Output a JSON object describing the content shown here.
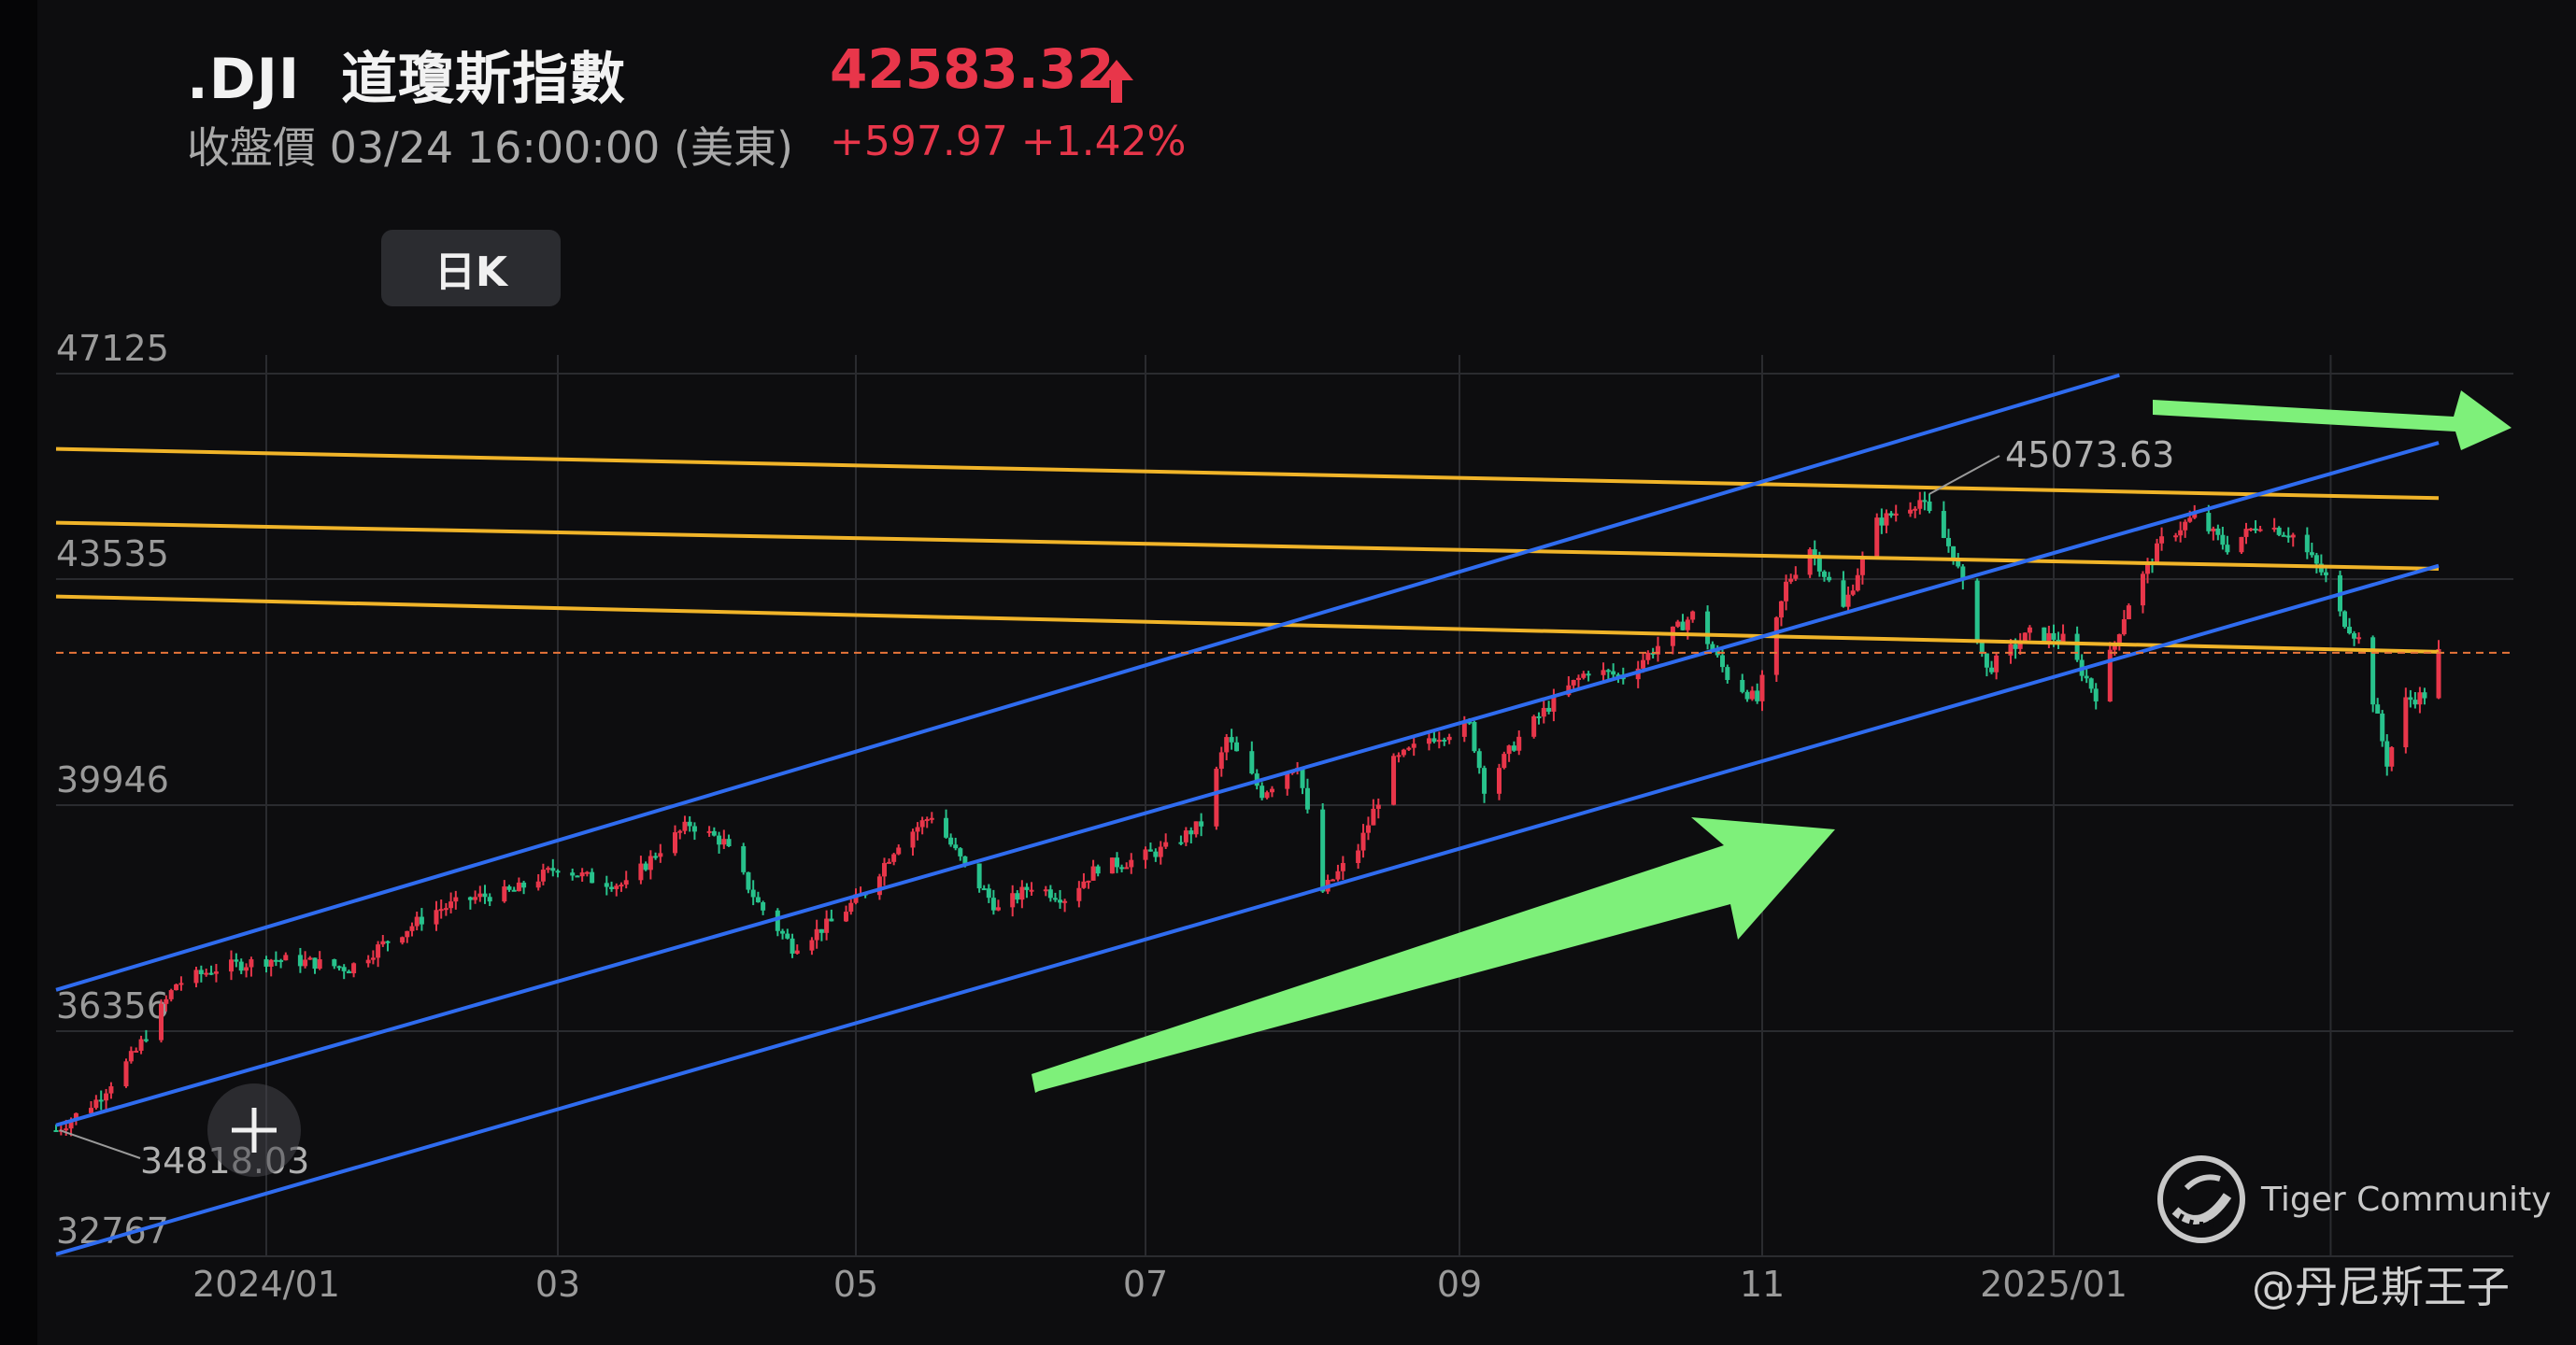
{
  "header": {
    "ticker": ".DJI",
    "name": "道瓊斯指數",
    "price": "42583.32",
    "status_line": "收盤價 03/24 16:00:00 (美東)",
    "change": "+597.97 +1.42%",
    "period_label": "日K"
  },
  "colors": {
    "up": "#e8364a",
    "down": "#28c28c",
    "channel": "#2f6cf0",
    "resistance": "#f0b429",
    "arrow": "#7ef07a",
    "close_line": "#e8743a"
  },
  "chart_data": {
    "type": "candlestick",
    "y_ticks": [
      47125,
      43535,
      39946,
      36356,
      32767
    ],
    "x_ticks": [
      "2024/01",
      "03",
      "05",
      "07",
      "09",
      "11",
      "2025/01"
    ],
    "current_close": 42583.32,
    "annotations": {
      "high_label": "45073.63",
      "high_value": 45073.63,
      "low_label": "34818.03",
      "low_value": 34818.03
    },
    "channel_lines": [
      {
        "start": [
          "2023/11/20",
          37100
        ],
        "end": [
          "2025/01/15",
          47100
        ]
      },
      {
        "start": [
          "2023/11/20",
          34900
        ],
        "end": [
          "2025/03/24",
          46000
        ]
      },
      {
        "start": [
          "2023/11/20",
          32800
        ],
        "end": [
          "2025/03/24",
          44000
        ]
      }
    ],
    "resistance_lines": [
      {
        "start": [
          "2023/11/20",
          45900
        ],
        "end": [
          "2025/03/24",
          45100
        ]
      },
      {
        "start": [
          "2023/11/20",
          44700
        ],
        "end": [
          "2025/03/24",
          43950
        ]
      },
      {
        "start": [
          "2023/11/20",
          43500
        ],
        "end": [
          "2025/03/24",
          42600
        ]
      }
    ],
    "close_path": [
      [
        "2023/11/20",
        34818
      ],
      [
        "2023/11/28",
        35300
      ],
      [
        "2023/12/06",
        36100
      ],
      [
        "2023/12/14",
        37200
      ],
      [
        "2023/12/22",
        37450
      ],
      [
        "2024/01/02",
        37600
      ],
      [
        "2024/01/10",
        37550
      ],
      [
        "2024/01/18",
        37450
      ],
      [
        "2024/01/26",
        37900
      ],
      [
        "2024/02/05",
        38400
      ],
      [
        "2024/02/13",
        38600
      ],
      [
        "2024/02/21",
        38700
      ],
      [
        "2024/03/01",
        39100
      ],
      [
        "2024/03/08",
        38900
      ],
      [
        "2024/03/15",
        38800
      ],
      [
        "2024/03/22",
        39400
      ],
      [
        "2024/03/28",
        39800
      ],
      [
        "2024/04/04",
        39500
      ],
      [
        "2024/04/11",
        38500
      ],
      [
        "2024/04/18",
        37800
      ],
      [
        "2024/04/26",
        38200
      ],
      [
        "2024/05/03",
        38700
      ],
      [
        "2024/05/10",
        39500
      ],
      [
        "2024/05/17",
        39950
      ],
      [
        "2024/05/24",
        39100
      ],
      [
        "2024/05/31",
        38400
      ],
      [
        "2024/06/07",
        38800
      ],
      [
        "2024/06/14",
        38600
      ],
      [
        "2024/06/21",
        39100
      ],
      [
        "2024/06/28",
        39200
      ],
      [
        "2024/07/05",
        39400
      ],
      [
        "2024/07/12",
        39800
      ],
      [
        "2024/07/17",
        41200
      ],
      [
        "2024/07/24",
        40300
      ],
      [
        "2024/07/31",
        40800
      ],
      [
        "2024/08/05",
        38700
      ],
      [
        "2024/08/12",
        39400
      ],
      [
        "2024/08/19",
        40800
      ],
      [
        "2024/08/26",
        41200
      ],
      [
        "2024/09/03",
        41400
      ],
      [
        "2024/09/06",
        40400
      ],
      [
        "2024/09/13",
        41200
      ],
      [
        "2024/09/20",
        41800
      ],
      [
        "2024/09/27",
        42300
      ],
      [
        "2024/10/04",
        42200
      ],
      [
        "2024/10/11",
        42700
      ],
      [
        "2024/10/18",
        43200
      ],
      [
        "2024/10/25",
        42200
      ],
      [
        "2024/10/31",
        41800
      ],
      [
        "2024/11/06",
        43700
      ],
      [
        "2024/11/11",
        44300
      ],
      [
        "2024/11/18",
        43300
      ],
      [
        "2024/11/25",
        44700
      ],
      [
        "2024/12/04",
        45073
      ],
      [
        "2024/12/11",
        44200
      ],
      [
        "2024/12/18",
        42300
      ],
      [
        "2024/12/27",
        42900
      ],
      [
        "2025/01/03",
        42800
      ],
      [
        "2025/01/10",
        41900
      ],
      [
        "2025/01/17",
        43400
      ],
      [
        "2025/01/24",
        44400
      ],
      [
        "2025/01/31",
        44800
      ],
      [
        "2025/02/07",
        44300
      ],
      [
        "2025/02/14",
        44700
      ],
      [
        "2025/02/21",
        44500
      ],
      [
        "2025/02/28",
        43800
      ],
      [
        "2025/03/03",
        43200
      ],
      [
        "2025/03/07",
        42800
      ],
      [
        "2025/03/11",
        41500
      ],
      [
        "2025/03/13",
        40800
      ],
      [
        "2025/03/17",
        41800
      ],
      [
        "2025/03/21",
        41900
      ],
      [
        "2025/03/24",
        42583
      ]
    ]
  },
  "brand": {
    "logo_icon": "tiger-logo-icon",
    "name": "Tiger Community"
  },
  "watermark": {
    "user": "@丹尼斯王子"
  }
}
